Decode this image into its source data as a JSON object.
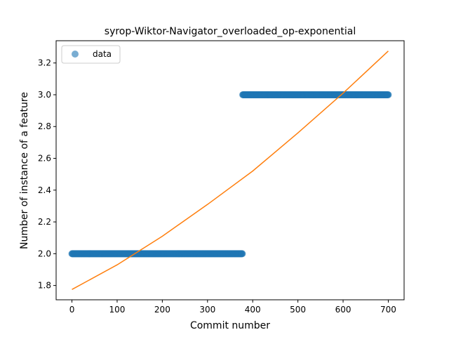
{
  "chart_data": {
    "type": "scatter",
    "title": "syrop-Wiktor-Navigator_overloaded_op-exponential",
    "xlabel": "Commit number",
    "ylabel": "Number of instance of a feature",
    "xlim": [
      -35,
      735
    ],
    "ylim": [
      1.71,
      3.34
    ],
    "xticks": [
      0,
      100,
      200,
      300,
      400,
      500,
      600,
      700
    ],
    "yticks": [
      1.8,
      2.0,
      2.2,
      2.4,
      2.6,
      2.8,
      3.0,
      3.2
    ],
    "xtick_labels": [
      "0",
      "100",
      "200",
      "300",
      "400",
      "500",
      "600",
      "700"
    ],
    "ytick_labels": [
      "1.8",
      "2.0",
      "2.2",
      "2.4",
      "2.6",
      "2.8",
      "3.0",
      "3.2"
    ],
    "grid": false,
    "legend": {
      "position": "top-left",
      "entries": [
        "data"
      ]
    },
    "series": [
      {
        "name": "data",
        "kind": "points",
        "color": "#1f77b4",
        "segments": [
          {
            "x_start": 0,
            "x_end": 377,
            "y": 2.0
          },
          {
            "x_start": 378,
            "x_end": 700,
            "y": 3.0
          }
        ]
      },
      {
        "kind": "line",
        "color": "#ff7f0e",
        "fit": "exponential",
        "x": [
          0,
          100,
          200,
          300,
          400,
          500,
          600,
          700
        ],
        "y": [
          1.775,
          1.93,
          2.11,
          2.31,
          2.52,
          2.76,
          3.01,
          3.275
        ]
      }
    ]
  }
}
